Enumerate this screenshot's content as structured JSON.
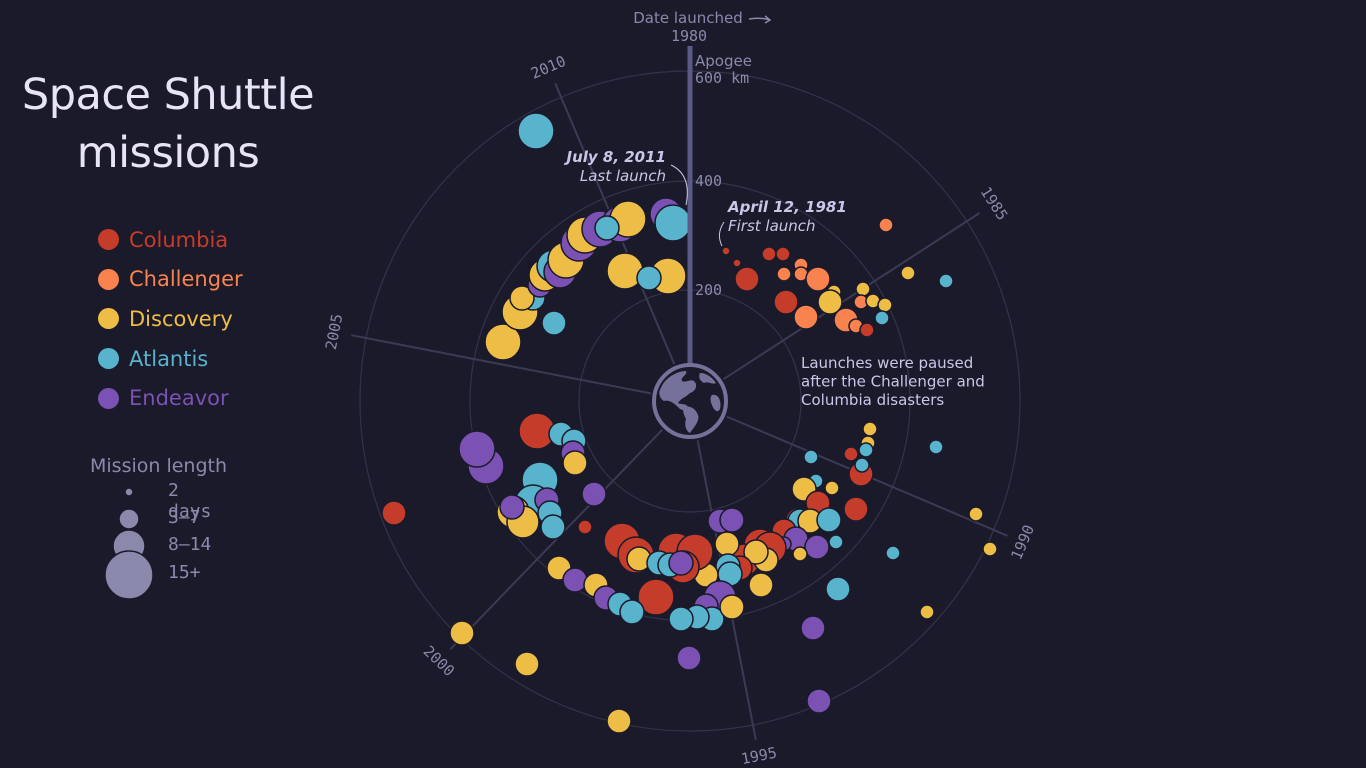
{
  "title": {
    "line1": "Space Shuttle",
    "line2": "missions"
  },
  "colors": {
    "background": "#1b1a2b",
    "Columbia": "#c63c2b",
    "Challenger": "#f9834e",
    "Discovery": "#edbd45",
    "Atlantis": "#58b3cd",
    "Endeavor": "#7b51b3",
    "axis": "#5b5a86",
    "grid": "#33324a",
    "label": "#8a89ab",
    "annotation": "#c9c7e8"
  },
  "legend": {
    "orbiters": [
      {
        "name": "Columbia",
        "color": "#c63c2b"
      },
      {
        "name": "Challenger",
        "color": "#f9834e"
      },
      {
        "name": "Discovery",
        "color": "#edbd45"
      },
      {
        "name": "Atlantis",
        "color": "#58b3cd"
      },
      {
        "name": "Endeavor",
        "color": "#7b51b3"
      }
    ],
    "size_title": "Mission length",
    "sizes": [
      {
        "label": "2 days",
        "r": 4
      },
      {
        "label": "3–7",
        "r": 10
      },
      {
        "label": "8–14",
        "r": 16
      },
      {
        "label": "15+",
        "r": 24
      }
    ]
  },
  "axis": {
    "date_label": "Date launched",
    "date_arrow": "→",
    "start_year": "1980",
    "apogee_label": "Apogee",
    "apogee_ticks": [
      {
        "label": "600 km",
        "r": 330
      },
      {
        "label": "400",
        "r": 220
      },
      {
        "label": "200",
        "r": 111
      }
    ],
    "years": [
      {
        "label": "1985",
        "angle": 57
      },
      {
        "label": "1990",
        "angle": 113
      },
      {
        "label": "1995",
        "angle": 169
      },
      {
        "label": "2000",
        "angle": 224
      },
      {
        "label": "2005",
        "angle": 281
      },
      {
        "label": "2010",
        "angle": 337
      }
    ]
  },
  "annotations": {
    "last_launch": {
      "date": "July 8, 2011",
      "text": "Last launch"
    },
    "first_launch": {
      "date": "April 12, 1981",
      "text": "First launch"
    },
    "pause_note": [
      "Launches were paused",
      "after the Challenger and",
      "Columbia disasters"
    ]
  },
  "chart_data": {
    "type": "scatter",
    "subtype": "polar-bubble",
    "title": "Space Shuttle missions",
    "angle_axis": {
      "label": "Date launched",
      "range": [
        1980,
        2012
      ],
      "ticks": [
        1980,
        1985,
        1990,
        1995,
        2000,
        2005,
        2010
      ]
    },
    "radial_axis": {
      "label": "Apogee (km)",
      "ticks": [
        200,
        400,
        600
      ]
    },
    "size_legend": {
      "title": "Mission length",
      "bins": [
        "2 days",
        "3–7",
        "8–14",
        "15+"
      ]
    },
    "series": [
      "Columbia",
      "Challenger",
      "Discovery",
      "Atlantis",
      "Endeavor"
    ],
    "center": [
      690,
      401
    ],
    "points": [
      {
        "o": "Columbia",
        "x": 726,
        "y": 251,
        "r": 4
      },
      {
        "o": "Columbia",
        "x": 737,
        "y": 263,
        "r": 4
      },
      {
        "o": "Columbia",
        "x": 747,
        "y": 279,
        "r": 12
      },
      {
        "o": "Columbia",
        "x": 769,
        "y": 254,
        "r": 7
      },
      {
        "o": "Columbia",
        "x": 783,
        "y": 254,
        "r": 7
      },
      {
        "o": "Columbia",
        "x": 786,
        "y": 302,
        "r": 12
      },
      {
        "o": "Challenger",
        "x": 784,
        "y": 274,
        "r": 7
      },
      {
        "o": "Challenger",
        "x": 801,
        "y": 265,
        "r": 7
      },
      {
        "o": "Challenger",
        "x": 801,
        "y": 274,
        "r": 7
      },
      {
        "o": "Challenger",
        "x": 818,
        "y": 279,
        "r": 12
      },
      {
        "o": "Challenger",
        "x": 806,
        "y": 317,
        "r": 12
      },
      {
        "o": "Challenger",
        "x": 886,
        "y": 225,
        "r": 7
      },
      {
        "o": "Discovery",
        "x": 834,
        "y": 292,
        "r": 7
      },
      {
        "o": "Discovery",
        "x": 830,
        "y": 302,
        "r": 12
      },
      {
        "o": "Challenger",
        "x": 846,
        "y": 320,
        "r": 12
      },
      {
        "o": "Challenger",
        "x": 856,
        "y": 326,
        "r": 7
      },
      {
        "o": "Columbia",
        "x": 867,
        "y": 330,
        "r": 7
      },
      {
        "o": "Discovery",
        "x": 863,
        "y": 289,
        "r": 7
      },
      {
        "o": "Challenger",
        "x": 861,
        "y": 302,
        "r": 7
      },
      {
        "o": "Discovery",
        "x": 873,
        "y": 301,
        "r": 7
      },
      {
        "o": "Discovery",
        "x": 885,
        "y": 305,
        "r": 7
      },
      {
        "o": "Atlantis",
        "x": 882,
        "y": 318,
        "r": 7
      },
      {
        "o": "Discovery",
        "x": 908,
        "y": 273,
        "r": 7
      },
      {
        "o": "Atlantis",
        "x": 946,
        "y": 281,
        "r": 7
      },
      {
        "o": "Discovery",
        "x": 870,
        "y": 429,
        "r": 7
      },
      {
        "o": "Discovery",
        "x": 868,
        "y": 443,
        "r": 7
      },
      {
        "o": "Columbia",
        "x": 851,
        "y": 454,
        "r": 7
      },
      {
        "o": "Atlantis",
        "x": 866,
        "y": 450,
        "r": 7
      },
      {
        "o": "Columbia",
        "x": 861,
        "y": 474,
        "r": 12
      },
      {
        "o": "Atlantis",
        "x": 862,
        "y": 465,
        "r": 7
      },
      {
        "o": "Atlantis",
        "x": 936,
        "y": 447,
        "r": 7
      },
      {
        "o": "Atlantis",
        "x": 811,
        "y": 457,
        "r": 7
      },
      {
        "o": "Atlantis",
        "x": 816,
        "y": 481,
        "r": 7
      },
      {
        "o": "Discovery",
        "x": 804,
        "y": 489,
        "r": 12
      },
      {
        "o": "Discovery",
        "x": 832,
        "y": 488,
        "r": 7
      },
      {
        "o": "Columbia",
        "x": 818,
        "y": 503,
        "r": 12
      },
      {
        "o": "Columbia",
        "x": 856,
        "y": 509,
        "r": 12
      },
      {
        "o": "Columbia",
        "x": 798,
        "y": 520,
        "r": 12
      },
      {
        "o": "Atlantis",
        "x": 800,
        "y": 521,
        "r": 12
      },
      {
        "o": "Discovery",
        "x": 810,
        "y": 521,
        "r": 12
      },
      {
        "o": "Atlantis",
        "x": 829,
        "y": 520,
        "r": 12
      },
      {
        "o": "Columbia",
        "x": 784,
        "y": 531,
        "r": 12
      },
      {
        "o": "Endeavor",
        "x": 796,
        "y": 539,
        "r": 12
      },
      {
        "o": "Atlantis",
        "x": 836,
        "y": 542,
        "r": 7
      },
      {
        "o": "Endeavor",
        "x": 817,
        "y": 547,
        "r": 12
      },
      {
        "o": "Discovery",
        "x": 800,
        "y": 554,
        "r": 7
      },
      {
        "o": "Endeavor",
        "x": 784,
        "y": 544,
        "r": 7
      },
      {
        "o": "Discovery",
        "x": 976,
        "y": 514,
        "r": 7
      },
      {
        "o": "Discovery",
        "x": 990,
        "y": 549,
        "r": 7
      },
      {
        "o": "Atlantis",
        "x": 893,
        "y": 553,
        "r": 7
      },
      {
        "o": "Atlantis",
        "x": 838,
        "y": 589,
        "r": 12
      },
      {
        "o": "Discovery",
        "x": 927,
        "y": 612,
        "r": 7
      },
      {
        "o": "Endeavor",
        "x": 813,
        "y": 628,
        "r": 12
      },
      {
        "o": "Endeavor",
        "x": 819,
        "y": 701,
        "r": 12
      },
      {
        "o": "Columbia",
        "x": 760,
        "y": 545,
        "r": 16
      },
      {
        "o": "Columbia",
        "x": 744,
        "y": 560,
        "r": 16
      },
      {
        "o": "Columbia",
        "x": 770,
        "y": 548,
        "r": 16
      },
      {
        "o": "Discovery",
        "x": 766,
        "y": 560,
        "r": 12
      },
      {
        "o": "Discovery",
        "x": 756,
        "y": 552,
        "r": 12
      },
      {
        "o": "Discovery",
        "x": 761,
        "y": 585,
        "r": 12
      },
      {
        "o": "Endeavor",
        "x": 720,
        "y": 521,
        "r": 12
      },
      {
        "o": "Endeavor",
        "x": 732,
        "y": 520,
        "r": 12
      },
      {
        "o": "Discovery",
        "x": 727,
        "y": 544,
        "r": 12
      },
      {
        "o": "Columbia",
        "x": 740,
        "y": 568,
        "r": 12
      },
      {
        "o": "Atlantis",
        "x": 728,
        "y": 566,
        "r": 12
      },
      {
        "o": "Atlantis",
        "x": 730,
        "y": 574,
        "r": 12
      },
      {
        "o": "Discovery",
        "x": 706,
        "y": 575,
        "r": 12
      },
      {
        "o": "Endeavor",
        "x": 720,
        "y": 597,
        "r": 16
      },
      {
        "o": "Endeavor",
        "x": 706,
        "y": 606,
        "r": 12
      },
      {
        "o": "Atlantis",
        "x": 712,
        "y": 619,
        "r": 12
      },
      {
        "o": "Atlantis",
        "x": 697,
        "y": 617,
        "r": 12
      },
      {
        "o": "Atlantis",
        "x": 681,
        "y": 619,
        "r": 12
      },
      {
        "o": "Discovery",
        "x": 732,
        "y": 607,
        "r": 12
      },
      {
        "o": "Columbia",
        "x": 622,
        "y": 541,
        "r": 18
      },
      {
        "o": "Columbia",
        "x": 636,
        "y": 555,
        "r": 18
      },
      {
        "o": "Columbia",
        "x": 676,
        "y": 551,
        "r": 18
      },
      {
        "o": "Columbia",
        "x": 695,
        "y": 552,
        "r": 18
      },
      {
        "o": "Columbia",
        "x": 683,
        "y": 567,
        "r": 16
      },
      {
        "o": "Discovery",
        "x": 639,
        "y": 559,
        "r": 12
      },
      {
        "o": "Atlantis",
        "x": 659,
        "y": 563,
        "r": 12
      },
      {
        "o": "Atlantis",
        "x": 670,
        "y": 565,
        "r": 12
      },
      {
        "o": "Endeavor",
        "x": 681,
        "y": 563,
        "r": 12
      },
      {
        "o": "Columbia",
        "x": 656,
        "y": 597,
        "r": 18
      },
      {
        "o": "Columbia",
        "x": 585,
        "y": 527,
        "r": 7
      },
      {
        "o": "Endeavor",
        "x": 594,
        "y": 494,
        "r": 12
      },
      {
        "o": "Discovery",
        "x": 559,
        "y": 568,
        "r": 12
      },
      {
        "o": "Endeavor",
        "x": 575,
        "y": 580,
        "r": 12
      },
      {
        "o": "Discovery",
        "x": 596,
        "y": 585,
        "r": 12
      },
      {
        "o": "Endeavor",
        "x": 606,
        "y": 598,
        "r": 12
      },
      {
        "o": "Atlantis",
        "x": 620,
        "y": 604,
        "r": 12
      },
      {
        "o": "Atlantis",
        "x": 632,
        "y": 612,
        "r": 12
      },
      {
        "o": "Endeavor",
        "x": 689,
        "y": 658,
        "r": 12
      },
      {
        "o": "Columbia",
        "x": 537,
        "y": 431,
        "r": 18
      },
      {
        "o": "Atlantis",
        "x": 561,
        "y": 434,
        "r": 12
      },
      {
        "o": "Atlantis",
        "x": 574,
        "y": 441,
        "r": 12
      },
      {
        "o": "Endeavor",
        "x": 573,
        "y": 453,
        "r": 12
      },
      {
        "o": "Discovery",
        "x": 575,
        "y": 463,
        "r": 12
      },
      {
        "o": "Endeavor",
        "x": 486,
        "y": 466,
        "r": 18
      },
      {
        "o": "Endeavor",
        "x": 477,
        "y": 449,
        "r": 18
      },
      {
        "o": "Atlantis",
        "x": 540,
        "y": 480,
        "r": 18
      },
      {
        "o": "Atlantis",
        "x": 533,
        "y": 503,
        "r": 18
      },
      {
        "o": "Discovery",
        "x": 513,
        "y": 512,
        "r": 16
      },
      {
        "o": "Discovery",
        "x": 523,
        "y": 522,
        "r": 16
      },
      {
        "o": "Endeavor",
        "x": 512,
        "y": 507,
        "r": 12
      },
      {
        "o": "Endeavor",
        "x": 547,
        "y": 500,
        "r": 12
      },
      {
        "o": "Atlantis",
        "x": 550,
        "y": 513,
        "r": 12
      },
      {
        "o": "Atlantis",
        "x": 553,
        "y": 527,
        "r": 12
      },
      {
        "o": "Columbia",
        "x": 394,
        "y": 513,
        "r": 12
      },
      {
        "o": "Discovery",
        "x": 462,
        "y": 633,
        "r": 12
      },
      {
        "o": "Discovery",
        "x": 527,
        "y": 664,
        "r": 12
      },
      {
        "o": "Discovery",
        "x": 619,
        "y": 721,
        "r": 12
      },
      {
        "o": "Discovery",
        "x": 503,
        "y": 342,
        "r": 18
      },
      {
        "o": "Discovery",
        "x": 520,
        "y": 312,
        "r": 18
      },
      {
        "o": "Atlantis",
        "x": 533,
        "y": 298,
        "r": 12
      },
      {
        "o": "Discovery",
        "x": 522,
        "y": 298,
        "r": 12
      },
      {
        "o": "Atlantis",
        "x": 554,
        "y": 323,
        "r": 12
      },
      {
        "o": "Endeavor",
        "x": 540,
        "y": 285,
        "r": 12
      },
      {
        "o": "Discovery",
        "x": 545,
        "y": 275,
        "r": 16
      },
      {
        "o": "Atlantis",
        "x": 553,
        "y": 266,
        "r": 16
      },
      {
        "o": "Endeavor",
        "x": 560,
        "y": 272,
        "r": 16
      },
      {
        "o": "Discovery",
        "x": 566,
        "y": 260,
        "r": 18
      },
      {
        "o": "Endeavor",
        "x": 579,
        "y": 243,
        "r": 18
      },
      {
        "o": "Discovery",
        "x": 585,
        "y": 235,
        "r": 18
      },
      {
        "o": "Endeavor",
        "x": 600,
        "y": 229,
        "r": 18
      },
      {
        "o": "Endeavor",
        "x": 620,
        "y": 224,
        "r": 18
      },
      {
        "o": "Discovery",
        "x": 628,
        "y": 219,
        "r": 18
      },
      {
        "o": "Atlantis",
        "x": 607,
        "y": 228,
        "r": 12
      },
      {
        "o": "Discovery",
        "x": 625,
        "y": 271,
        "r": 18
      },
      {
        "o": "Discovery",
        "x": 668,
        "y": 276,
        "r": 18
      },
      {
        "o": "Atlantis",
        "x": 649,
        "y": 278,
        "r": 12
      },
      {
        "o": "Endeavor",
        "x": 666,
        "y": 214,
        "r": 16
      },
      {
        "o": "Atlantis",
        "x": 673,
        "y": 223,
        "r": 18
      },
      {
        "o": "Atlantis",
        "x": 536,
        "y": 131,
        "r": 18
      }
    ]
  }
}
